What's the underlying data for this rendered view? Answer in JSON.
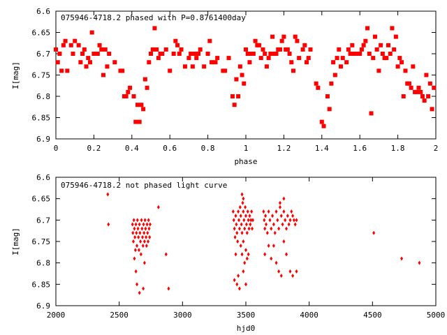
{
  "chart_data": [
    {
      "type": "scatter",
      "title": "075946-4718.2 phased with P=0.8761400day",
      "xlabel": "phase",
      "ylabel": "I[mag]",
      "xlim": [
        0,
        2
      ],
      "ylim": [
        6.6,
        6.9
      ],
      "y_inverted": true,
      "grid": false,
      "xticks": [
        "0",
        "0.2",
        "0.4",
        "0.6",
        "0.8",
        "1",
        "1.2",
        "1.4",
        "1.6",
        "1.8",
        "2"
      ],
      "yticks": [
        "6.6",
        "6.65",
        "6.7",
        "6.75",
        "6.8",
        "6.85",
        "6.9"
      ],
      "marker_color": "#ff0000",
      "marker": "filled-square",
      "points": [
        [
          0.0,
          6.69
        ],
        [
          0.01,
          6.72
        ],
        [
          0.02,
          6.7
        ],
        [
          0.03,
          6.74
        ],
        [
          0.04,
          6.68
        ],
        [
          0.05,
          6.67
        ],
        [
          0.06,
          6.74
        ],
        [
          0.08,
          6.68
        ],
        [
          0.09,
          6.7
        ],
        [
          0.1,
          6.67
        ],
        [
          0.12,
          6.68
        ],
        [
          0.13,
          6.72
        ],
        [
          0.14,
          6.7
        ],
        [
          0.15,
          6.69
        ],
        [
          0.16,
          6.73
        ],
        [
          0.17,
          6.71
        ],
        [
          0.18,
          6.72
        ],
        [
          0.19,
          6.65
        ],
        [
          0.2,
          6.7
        ],
        [
          0.21,
          6.7
        ],
        [
          0.22,
          6.7
        ],
        [
          0.23,
          6.68
        ],
        [
          0.24,
          6.69
        ],
        [
          0.25,
          6.75
        ],
        [
          0.26,
          6.69
        ],
        [
          0.27,
          6.73
        ],
        [
          0.28,
          6.7
        ],
        [
          0.31,
          6.72
        ],
        [
          0.34,
          6.74
        ],
        [
          0.35,
          6.74
        ],
        [
          0.36,
          6.8
        ],
        [
          0.37,
          6.8
        ],
        [
          0.38,
          6.79
        ],
        [
          0.39,
          6.78
        ],
        [
          0.41,
          6.8
        ],
        [
          0.42,
          6.86
        ],
        [
          0.43,
          6.82
        ],
        [
          0.44,
          6.86
        ],
        [
          0.45,
          6.82
        ],
        [
          0.46,
          6.83
        ],
        [
          0.47,
          6.76
        ],
        [
          0.48,
          6.78
        ],
        [
          0.49,
          6.72
        ],
        [
          0.5,
          6.7
        ],
        [
          0.51,
          6.69
        ],
        [
          0.52,
          6.64
        ],
        [
          0.53,
          6.69
        ],
        [
          0.54,
          6.71
        ],
        [
          0.55,
          6.7
        ],
        [
          0.56,
          6.7
        ],
        [
          0.58,
          6.69
        ],
        [
          0.6,
          6.74
        ],
        [
          0.62,
          6.7
        ],
        [
          0.63,
          6.67
        ],
        [
          0.64,
          6.68
        ],
        [
          0.65,
          6.7
        ],
        [
          0.66,
          6.69
        ],
        [
          0.68,
          6.73
        ],
        [
          0.7,
          6.71
        ],
        [
          0.71,
          6.7
        ],
        [
          0.72,
          6.73
        ],
        [
          0.73,
          6.7
        ],
        [
          0.74,
          6.71
        ],
        [
          0.75,
          6.7
        ],
        [
          0.76,
          6.69
        ],
        [
          0.78,
          6.73
        ],
        [
          0.8,
          6.7
        ],
        [
          0.81,
          6.67
        ],
        [
          0.82,
          6.72
        ],
        [
          0.84,
          6.72
        ],
        [
          0.85,
          6.71
        ],
        [
          0.88,
          6.74
        ],
        [
          0.89,
          6.74
        ],
        [
          0.91,
          6.71
        ],
        [
          0.93,
          6.8
        ],
        [
          0.94,
          6.82
        ],
        [
          0.95,
          6.76
        ],
        [
          0.96,
          6.8
        ],
        [
          0.97,
          6.73
        ],
        [
          0.98,
          6.75
        ],
        [
          0.99,
          6.77
        ],
        [
          1.0,
          6.69
        ],
        [
          1.01,
          6.7
        ],
        [
          1.02,
          6.72
        ],
        [
          1.03,
          6.7
        ],
        [
          1.04,
          6.7
        ],
        [
          1.05,
          6.67
        ],
        [
          1.06,
          6.68
        ],
        [
          1.07,
          6.68
        ],
        [
          1.08,
          6.71
        ],
        [
          1.09,
          6.69
        ],
        [
          1.1,
          6.7
        ],
        [
          1.11,
          6.73
        ],
        [
          1.12,
          6.71
        ],
        [
          1.13,
          6.7
        ],
        [
          1.14,
          6.66
        ],
        [
          1.15,
          6.7
        ],
        [
          1.16,
          6.7
        ],
        [
          1.17,
          6.69
        ],
        [
          1.18,
          6.69
        ],
        [
          1.19,
          6.67
        ],
        [
          1.2,
          6.66
        ],
        [
          1.21,
          6.69
        ],
        [
          1.22,
          6.69
        ],
        [
          1.23,
          6.7
        ],
        [
          1.24,
          6.72
        ],
        [
          1.25,
          6.74
        ],
        [
          1.26,
          6.66
        ],
        [
          1.27,
          6.67
        ],
        [
          1.28,
          6.71
        ],
        [
          1.3,
          6.69
        ],
        [
          1.31,
          6.68
        ],
        [
          1.32,
          6.72
        ],
        [
          1.33,
          6.71
        ],
        [
          1.34,
          6.69
        ],
        [
          1.37,
          6.77
        ],
        [
          1.38,
          6.78
        ],
        [
          1.4,
          6.86
        ],
        [
          1.41,
          6.87
        ],
        [
          1.43,
          6.8
        ],
        [
          1.44,
          6.83
        ],
        [
          1.45,
          6.77
        ],
        [
          1.46,
          6.72
        ],
        [
          1.47,
          6.75
        ],
        [
          1.48,
          6.71
        ],
        [
          1.49,
          6.69
        ],
        [
          1.5,
          6.73
        ],
        [
          1.51,
          6.71
        ],
        [
          1.53,
          6.72
        ],
        [
          1.54,
          6.69
        ],
        [
          1.55,
          6.7
        ],
        [
          1.56,
          6.68
        ],
        [
          1.57,
          6.7
        ],
        [
          1.58,
          6.7
        ],
        [
          1.6,
          6.7
        ],
        [
          1.61,
          6.69
        ],
        [
          1.62,
          6.68
        ],
        [
          1.63,
          6.67
        ],
        [
          1.64,
          6.64
        ],
        [
          1.65,
          6.7
        ],
        [
          1.66,
          6.84
        ],
        [
          1.67,
          6.71
        ],
        [
          1.68,
          6.66
        ],
        [
          1.69,
          6.69
        ],
        [
          1.7,
          6.74
        ],
        [
          1.71,
          6.68
        ],
        [
          1.72,
          6.7
        ],
        [
          1.73,
          6.71
        ],
        [
          1.74,
          6.71
        ],
        [
          1.75,
          6.68
        ],
        [
          1.76,
          6.7
        ],
        [
          1.77,
          6.64
        ],
        [
          1.78,
          6.69
        ],
        [
          1.79,
          6.66
        ],
        [
          1.8,
          6.73
        ],
        [
          1.81,
          6.71
        ],
        [
          1.82,
          6.72
        ],
        [
          1.83,
          6.8
        ],
        [
          1.84,
          6.74
        ],
        [
          1.85,
          6.77
        ],
        [
          1.86,
          6.77
        ],
        [
          1.87,
          6.78
        ],
        [
          1.88,
          6.73
        ],
        [
          1.89,
          6.79
        ],
        [
          1.9,
          6.79
        ],
        [
          1.91,
          6.78
        ],
        [
          1.92,
          6.79
        ],
        [
          1.93,
          6.8
        ],
        [
          1.94,
          6.81
        ],
        [
          1.95,
          6.75
        ],
        [
          1.96,
          6.8
        ],
        [
          1.97,
          6.77
        ],
        [
          1.98,
          6.83
        ],
        [
          1.99,
          6.78
        ]
      ]
    },
    {
      "type": "scatter",
      "title": "075946-4718.2 not phased light curve",
      "xlabel": "hjd0",
      "ylabel": "I[mag]",
      "xlim": [
        2000,
        5000
      ],
      "ylim": [
        6.6,
        6.9
      ],
      "y_inverted": true,
      "grid": false,
      "xticks": [
        "2000",
        "2500",
        "3000",
        "3500",
        "4000",
        "4500",
        "5000"
      ],
      "yticks": [
        "6.6",
        "6.65",
        "6.7",
        "6.75",
        "6.8",
        "6.85",
        "6.9"
      ],
      "marker_color": "#ff0000",
      "marker": "filled-diamond",
      "points": [
        [
          2410,
          6.64
        ],
        [
          2415,
          6.71
        ],
        [
          2605,
          6.71
        ],
        [
          2608,
          6.73
        ],
        [
          2612,
          6.75
        ],
        [
          2616,
          6.7
        ],
        [
          2620,
          6.72
        ],
        [
          2624,
          6.74
        ],
        [
          2628,
          6.77
        ],
        [
          2632,
          6.71
        ],
        [
          2636,
          6.73
        ],
        [
          2640,
          6.76
        ],
        [
          2644,
          6.7
        ],
        [
          2648,
          6.72
        ],
        [
          2652,
          6.74
        ],
        [
          2656,
          6.77
        ],
        [
          2660,
          6.71
        ],
        [
          2664,
          6.73
        ],
        [
          2668,
          6.75
        ],
        [
          2672,
          6.78
        ],
        [
          2676,
          6.7
        ],
        [
          2680,
          6.72
        ],
        [
          2684,
          6.74
        ],
        [
          2688,
          6.76
        ],
        [
          2692,
          6.71
        ],
        [
          2696,
          6.73
        ],
        [
          2700,
          6.75
        ],
        [
          2704,
          6.7
        ],
        [
          2708,
          6.72
        ],
        [
          2712,
          6.74
        ],
        [
          2716,
          6.76
        ],
        [
          2720,
          6.71
        ],
        [
          2724,
          6.73
        ],
        [
          2728,
          6.75
        ],
        [
          2732,
          6.7
        ],
        [
          2736,
          6.72
        ],
        [
          2740,
          6.74
        ],
        [
          2744,
          6.71
        ],
        [
          2620,
          6.79
        ],
        [
          2632,
          6.82
        ],
        [
          2640,
          6.85
        ],
        [
          2660,
          6.87
        ],
        [
          2690,
          6.86
        ],
        [
          2700,
          6.8
        ],
        [
          2810,
          6.67
        ],
        [
          2870,
          6.78
        ],
        [
          2890,
          6.86
        ],
        [
          3400,
          6.68
        ],
        [
          3405,
          6.7
        ],
        [
          3410,
          6.72
        ],
        [
          3415,
          6.74
        ],
        [
          3420,
          6.69
        ],
        [
          3425,
          6.71
        ],
        [
          3430,
          6.73
        ],
        [
          3435,
          6.75
        ],
        [
          3440,
          6.68
        ],
        [
          3445,
          6.7
        ],
        [
          3450,
          6.72
        ],
        [
          3455,
          6.67
        ],
        [
          3460,
          6.69
        ],
        [
          3465,
          6.71
        ],
        [
          3470,
          6.73
        ],
        [
          3475,
          6.66
        ],
        [
          3480,
          6.68
        ],
        [
          3485,
          6.7
        ],
        [
          3490,
          6.72
        ],
        [
          3495,
          6.67
        ],
        [
          3500,
          6.69
        ],
        [
          3505,
          6.71
        ],
        [
          3510,
          6.73
        ],
        [
          3515,
          6.68
        ],
        [
          3520,
          6.7
        ],
        [
          3525,
          6.72
        ],
        [
          3530,
          6.69
        ],
        [
          3535,
          6.71
        ],
        [
          3540,
          6.7
        ],
        [
          3545,
          6.68
        ],
        [
          3550,
          6.72
        ],
        [
          3555,
          6.7
        ],
        [
          3460,
          6.76
        ],
        [
          3470,
          6.78
        ],
        [
          3480,
          6.75
        ],
        [
          3490,
          6.8
        ],
        [
          3500,
          6.77
        ],
        [
          3510,
          6.79
        ],
        [
          3520,
          6.78
        ],
        [
          3440,
          6.83
        ],
        [
          3450,
          6.86
        ],
        [
          3480,
          6.82
        ],
        [
          3500,
          6.85
        ],
        [
          3430,
          6.85
        ],
        [
          3420,
          6.78
        ],
        [
          3480,
          6.65
        ],
        [
          3470,
          6.64
        ],
        [
          3410,
          6.84
        ],
        [
          3640,
          6.68
        ],
        [
          3645,
          6.7
        ],
        [
          3650,
          6.72
        ],
        [
          3655,
          6.69
        ],
        [
          3660,
          6.71
        ],
        [
          3670,
          6.73
        ],
        [
          3680,
          6.68
        ],
        [
          3690,
          6.7
        ],
        [
          3700,
          6.72
        ],
        [
          3710,
          6.69
        ],
        [
          3720,
          6.71
        ],
        [
          3730,
          6.73
        ],
        [
          3740,
          6.68
        ],
        [
          3750,
          6.7
        ],
        [
          3760,
          6.72
        ],
        [
          3770,
          6.67
        ],
        [
          3780,
          6.69
        ],
        [
          3790,
          6.71
        ],
        [
          3800,
          6.68
        ],
        [
          3810,
          6.7
        ],
        [
          3820,
          6.72
        ],
        [
          3830,
          6.69
        ],
        [
          3840,
          6.71
        ],
        [
          3850,
          6.7
        ],
        [
          3860,
          6.68
        ],
        [
          3870,
          6.69
        ],
        [
          3880,
          6.7
        ],
        [
          3890,
          6.71
        ],
        [
          3900,
          6.7
        ],
        [
          3650,
          6.78
        ],
        [
          3680,
          6.76
        ],
        [
          3700,
          6.79
        ],
        [
          3720,
          6.76
        ],
        [
          3740,
          6.8
        ],
        [
          3760,
          6.82
        ],
        [
          3780,
          6.83
        ],
        [
          3800,
          6.75
        ],
        [
          3820,
          6.78
        ],
        [
          3850,
          6.82
        ],
        [
          3870,
          6.83
        ],
        [
          3900,
          6.82
        ],
        [
          3800,
          6.65
        ],
        [
          3770,
          6.66
        ],
        [
          4510,
          6.73
        ],
        [
          4730,
          6.79
        ],
        [
          4870,
          6.8
        ]
      ]
    }
  ]
}
